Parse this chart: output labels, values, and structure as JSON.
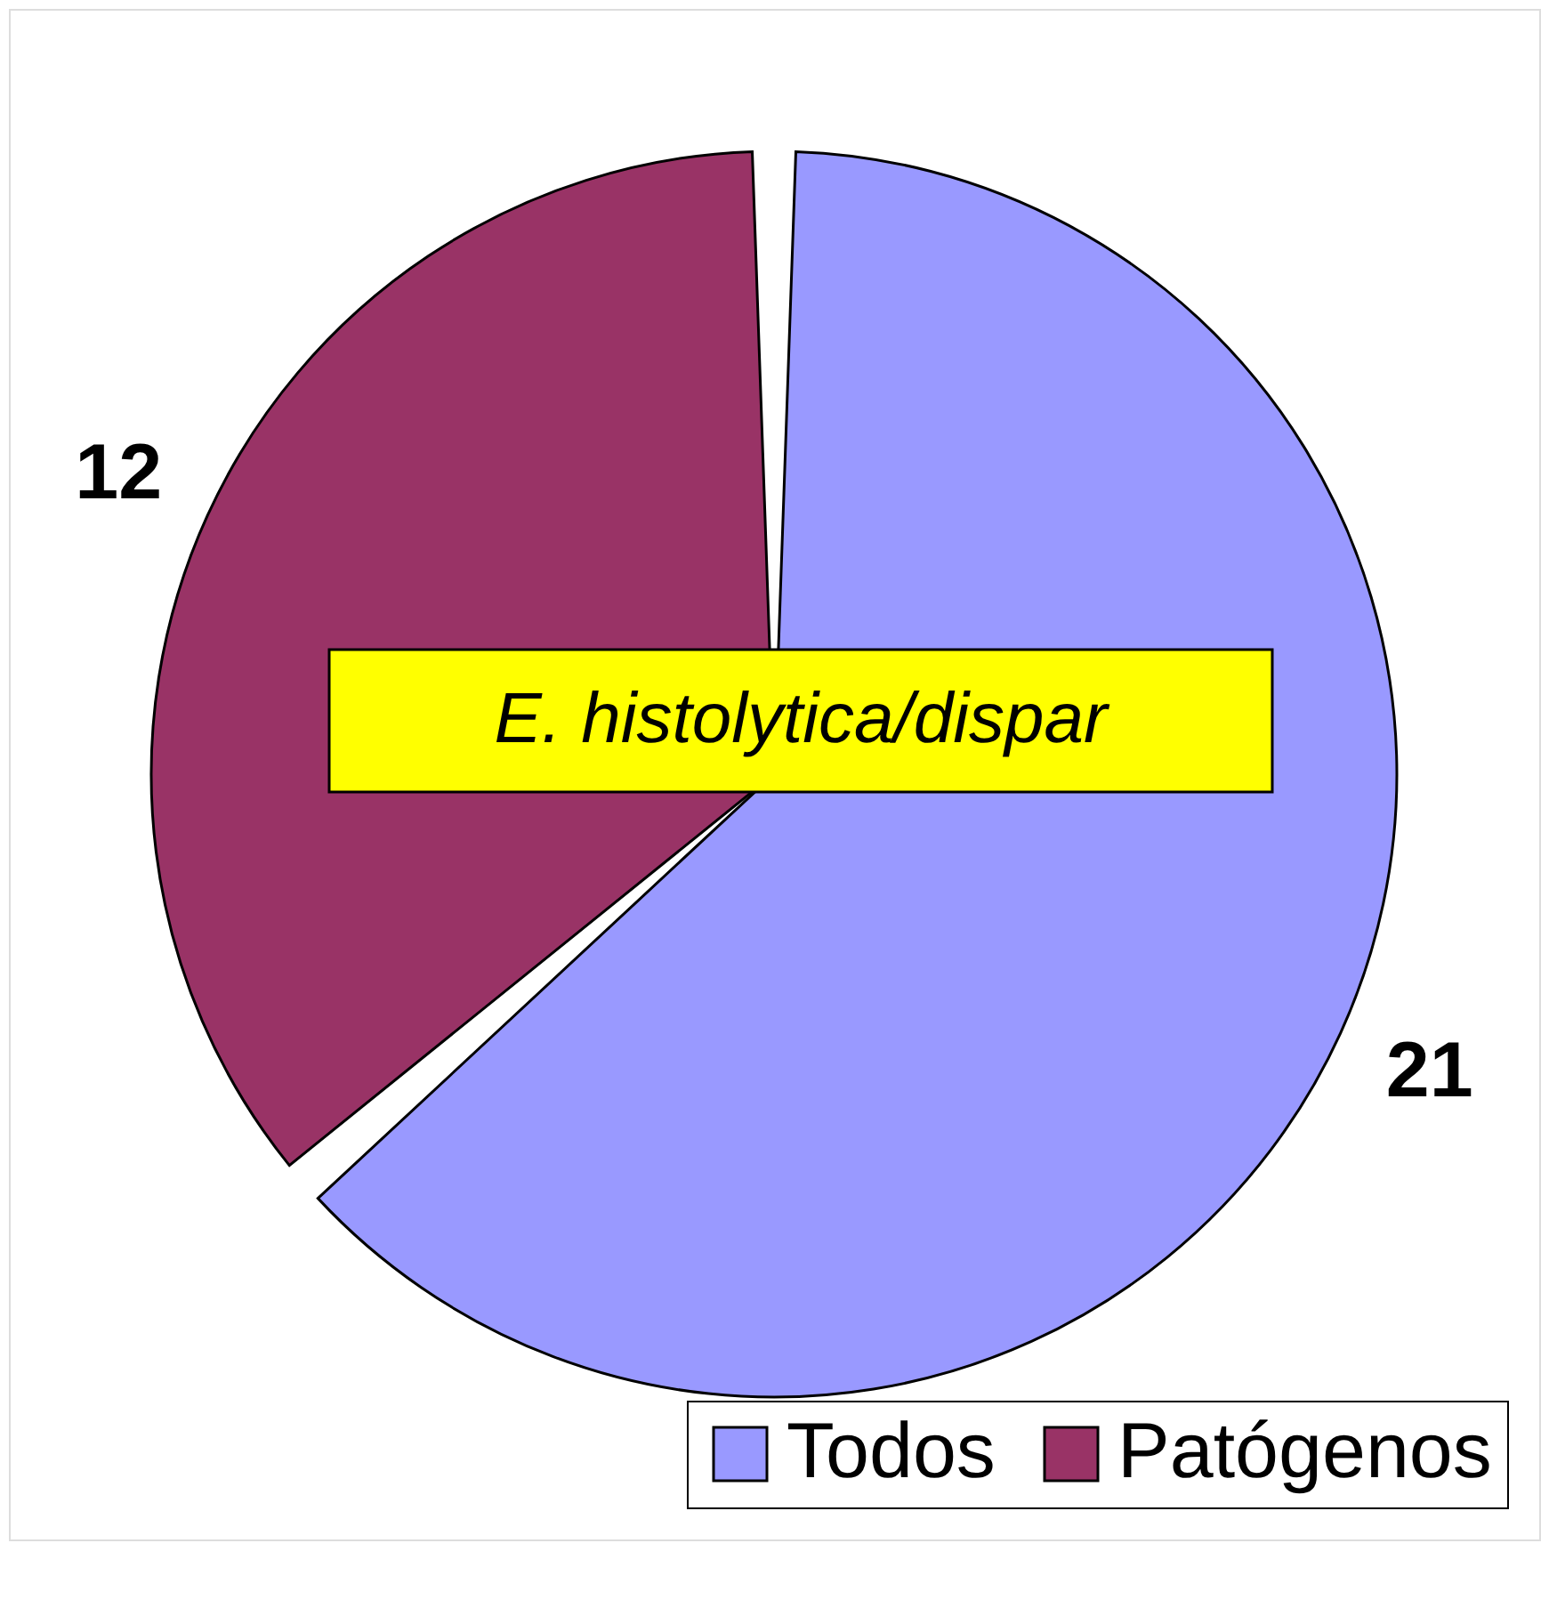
{
  "chart_data": {
    "type": "pie",
    "categories": [
      "Todos",
      "Patógenos"
    ],
    "values": [
      21,
      12
    ],
    "colors": [
      "#9999ff",
      "#993366"
    ],
    "data_labels": true,
    "annotations": [
      "E. histolytica/dispar"
    ],
    "legend": "bottom right"
  }
}
